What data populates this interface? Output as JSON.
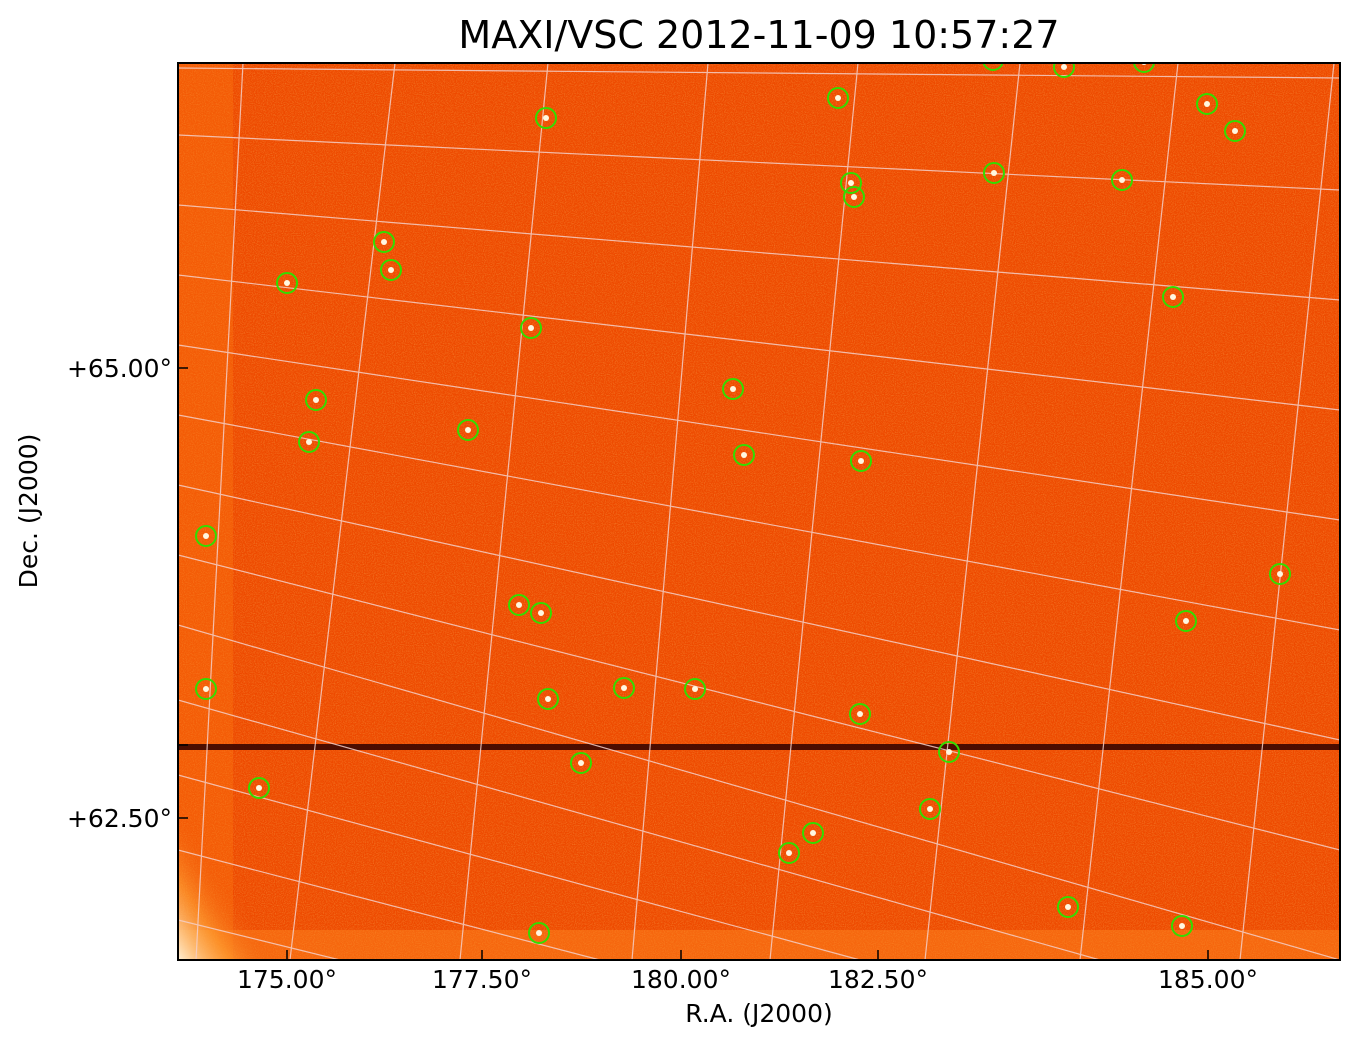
{
  "title": "MAXI/VSC 2012-11-09 10:57:27",
  "x_axis": {
    "label": "R.A. (J2000)",
    "ticks": [
      "175.00°",
      "177.50°",
      "180.00°",
      "182.50°",
      "185.00°"
    ]
  },
  "y_axis": {
    "label": "Dec. (J2000)",
    "ticks": [
      "+65.00°",
      "+62.50°"
    ]
  },
  "colors": {
    "background": "#ee4a00",
    "circle": "#33dd00",
    "grid": "#f2c8c0",
    "stripe": "#3a0500"
  },
  "sources_count_visible": 40
}
